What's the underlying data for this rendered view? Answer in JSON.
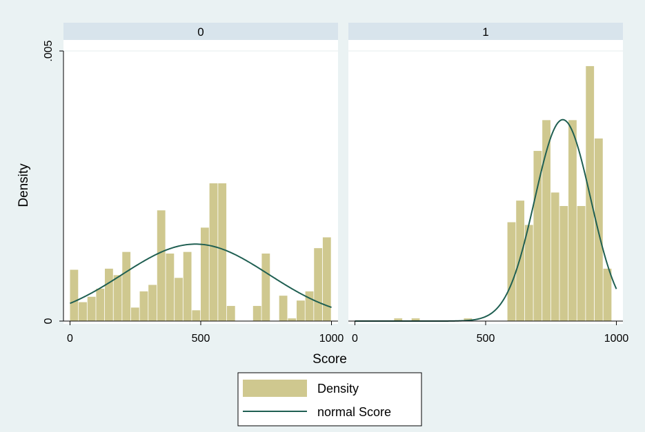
{
  "chart_data": {
    "type": "bar",
    "xlabel": "Score",
    "ylabel": "Density",
    "xlim": [
      -25,
      1025
    ],
    "ylim": [
      0,
      0.005
    ],
    "x_ticks": [
      {
        "value": 0,
        "label": "0"
      },
      {
        "value": 500,
        "label": "500"
      },
      {
        "value": 1000,
        "label": "1000"
      }
    ],
    "y_ticks": [
      {
        "value": 0,
        "label": "0"
      },
      {
        "value": 0.005,
        "label": ".005"
      }
    ],
    "bin_width": 33.3,
    "legend": {
      "position": "bottom",
      "entries": [
        {
          "label": "Density",
          "kind": "bar"
        },
        {
          "label": "normal Score",
          "kind": "line"
        }
      ]
    },
    "colors": {
      "bar": "#cfc88f",
      "line": "#1f5f52",
      "panel_header": "#d8e4ec",
      "background": "#eaf2f3",
      "plot": "#ffffff"
    },
    "panels": [
      {
        "title": "0",
        "bins": [
          {
            "x": 0,
            "density": 0.00095
          },
          {
            "x": 33.3,
            "density": 0.00035
          },
          {
            "x": 66.7,
            "density": 0.00045
          },
          {
            "x": 100,
            "density": 0.0006
          },
          {
            "x": 133.3,
            "density": 0.00097
          },
          {
            "x": 166.7,
            "density": 0.00085
          },
          {
            "x": 200,
            "density": 0.00128
          },
          {
            "x": 233.3,
            "density": 0.00025
          },
          {
            "x": 266.7,
            "density": 0.00055
          },
          {
            "x": 300,
            "density": 0.00067
          },
          {
            "x": 333.3,
            "density": 0.00205
          },
          {
            "x": 366.7,
            "density": 0.00125
          },
          {
            "x": 400,
            "density": 0.0008
          },
          {
            "x": 433.3,
            "density": 0.00128
          },
          {
            "x": 466.7,
            "density": 0.0002
          },
          {
            "x": 500,
            "density": 0.00173
          },
          {
            "x": 533.3,
            "density": 0.00255
          },
          {
            "x": 566.7,
            "density": 0.00255
          },
          {
            "x": 600,
            "density": 0.00028
          },
          {
            "x": 633.3,
            "density": 0
          },
          {
            "x": 666.7,
            "density": 0
          },
          {
            "x": 700,
            "density": 0.00028
          },
          {
            "x": 733.3,
            "density": 0.00125
          },
          {
            "x": 766.7,
            "density": 0
          },
          {
            "x": 800,
            "density": 0.00047
          },
          {
            "x": 833.3,
            "density": 5e-05
          },
          {
            "x": 866.7,
            "density": 0.00038
          },
          {
            "x": 900,
            "density": 0.00055
          },
          {
            "x": 933.3,
            "density": 0.00135
          },
          {
            "x": 966.7,
            "density": 0.00155
          }
        ],
        "normal": {
          "mean": 480,
          "sd": 280
        }
      },
      {
        "title": "1",
        "bins": [
          {
            "x": 150,
            "density": 5e-05
          },
          {
            "x": 216.7,
            "density": 5e-05
          },
          {
            "x": 416.7,
            "density": 5e-05
          },
          {
            "x": 583.3,
            "density": 0.00183
          },
          {
            "x": 616.7,
            "density": 0.00223
          },
          {
            "x": 650,
            "density": 0.00178
          },
          {
            "x": 683.3,
            "density": 0.00315
          },
          {
            "x": 716.7,
            "density": 0.00372
          },
          {
            "x": 750,
            "density": 0.00238
          },
          {
            "x": 783.3,
            "density": 0.00213
          },
          {
            "x": 816.7,
            "density": 0.00372
          },
          {
            "x": 850,
            "density": 0.00213
          },
          {
            "x": 883.3,
            "density": 0.00472
          },
          {
            "x": 916.7,
            "density": 0.00338
          },
          {
            "x": 950,
            "density": 0.00097
          }
        ],
        "normal": {
          "mean": 795,
          "sd": 107
        }
      }
    ]
  }
}
